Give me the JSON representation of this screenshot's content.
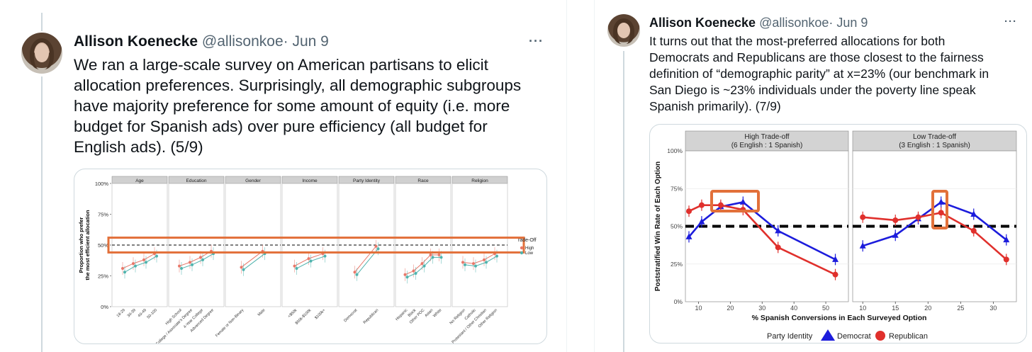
{
  "tweet1": {
    "author_name": "Allison Koenecke",
    "handle": "@allisonkoe",
    "separator": "·",
    "date": "Jun 9",
    "more_label": "···",
    "text": "We ran a large-scale survey on American partisans to elicit\nallocation preferences. Surprisingly, all demographic subgroups\nhave majority preference for some amount of equity (i.e. more\nbudget for Spanish ads) over pure efficiency (all budget for\nEnglish ads). (5/9)"
  },
  "tweet2": {
    "author_name": "Allison Koenecke",
    "handle": "@allisonkoe",
    "separator": "·",
    "date": "Jun 9",
    "more_label": "···",
    "text": "It turns out that the most-preferred allocations for both\nDemocrats and Republicans are those closest to the fairness\ndefinition of “demographic parity” at x=23% (our benchmark in\nSan Diego is ~23% individuals under the poverty line speak\nSpanish primarily). (7/9)"
  },
  "chart_data": [
    {
      "type": "scatter",
      "ylabel": "Proportion who prefer\nthe most efficient allocation",
      "yticks": [
        "0%",
        "25%",
        "50%",
        "75%",
        "100%"
      ],
      "ylim": [
        0,
        100
      ],
      "legend_title": "Trade-Off",
      "legend_title_shown": "rade-Off",
      "legend": [
        {
          "name": "High",
          "color": "#e8786a"
        },
        {
          "name": "Low",
          "color": "#4fb3ad"
        }
      ],
      "reference_line": 50,
      "panels": [
        {
          "title": "Age",
          "categories": [
            "18-29",
            "30-39",
            "40-49",
            "50-100"
          ],
          "high": [
            31,
            35,
            38,
            43
          ],
          "low": [
            28,
            33,
            36,
            41
          ]
        },
        {
          "title": "Education",
          "categories": [
            "High School",
            "Partway College / Associate's Degree",
            "4-Year College",
            "Advanced Degree"
          ],
          "high": [
            33,
            36,
            40,
            45
          ],
          "low": [
            31,
            34,
            38,
            43
          ]
        },
        {
          "title": "Gender",
          "categories": [
            "Female or Non-Binary",
            "Male"
          ],
          "high": [
            32,
            45
          ],
          "low": [
            30,
            43
          ]
        },
        {
          "title": "Income",
          "categories": [
            "<$50k",
            "$50k-$100k",
            "$100k+"
          ],
          "high": [
            33,
            39,
            43
          ],
          "low": [
            31,
            37,
            41
          ]
        },
        {
          "title": "Party Identity",
          "categories": [
            "Democrat",
            "Republican"
          ],
          "high": [
            28,
            49
          ],
          "low": [
            26,
            47
          ]
        },
        {
          "title": "Race",
          "categories": [
            "Hispanic",
            "Black",
            "Other POC",
            "Asian",
            "White"
          ],
          "high": [
            26,
            29,
            35,
            42,
            42
          ],
          "low": [
            24,
            27,
            33,
            40,
            40
          ]
        },
        {
          "title": "Religion",
          "categories": [
            "No Religion",
            "Catholic",
            "Protestant / Other Christian",
            "Other Religion"
          ],
          "high": [
            36,
            35,
            38,
            43
          ],
          "low": [
            34,
            33,
            36,
            41
          ]
        }
      ]
    },
    {
      "type": "line",
      "xlabel": "% Spanish Conversions in Each Surveyed Option",
      "ylabel": "Poststratified Win Rate of Each Option",
      "yticks": [
        "0%",
        "25%",
        "50%",
        "75%",
        "100%"
      ],
      "ylim": [
        0,
        100
      ],
      "reference_line": 50,
      "legend_title": "Party Identity",
      "panels": [
        {
          "title": "High Trade-off",
          "subtitle": "(6 English : 1 Spanish)",
          "xlim": [
            7,
            56
          ],
          "xticks": [
            10,
            20,
            30,
            40,
            50
          ],
          "series": [
            {
              "name": "Democrat",
              "color": "#1c1cdc",
              "x": [
                7,
                11,
                17,
                24,
                35,
                53
              ],
              "y": [
                43,
                53,
                63,
                66,
                47,
                28
              ]
            },
            {
              "name": "Republican",
              "color": "#e0302c",
              "x": [
                7,
                11,
                17,
                24,
                35,
                53
              ],
              "y": [
                60,
                64,
                64,
                61,
                36,
                18
              ]
            }
          ]
        },
        {
          "title": "Low Trade-off",
          "subtitle": "(3 English : 1 Spanish)",
          "xlim": [
            9,
            33
          ],
          "xticks": [
            10,
            15,
            20,
            25,
            30
          ],
          "series": [
            {
              "name": "Democrat",
              "color": "#1c1cdc",
              "x": [
                10,
                15,
                18.5,
                22,
                27,
                32
              ],
              "y": [
                37,
                44,
                55,
                66,
                58,
                41
              ]
            },
            {
              "name": "Republican",
              "color": "#e0302c",
              "x": [
                10,
                15,
                18.5,
                22,
                27,
                32
              ],
              "y": [
                56,
                54,
                56,
                59,
                47,
                28
              ]
            }
          ]
        }
      ]
    }
  ]
}
